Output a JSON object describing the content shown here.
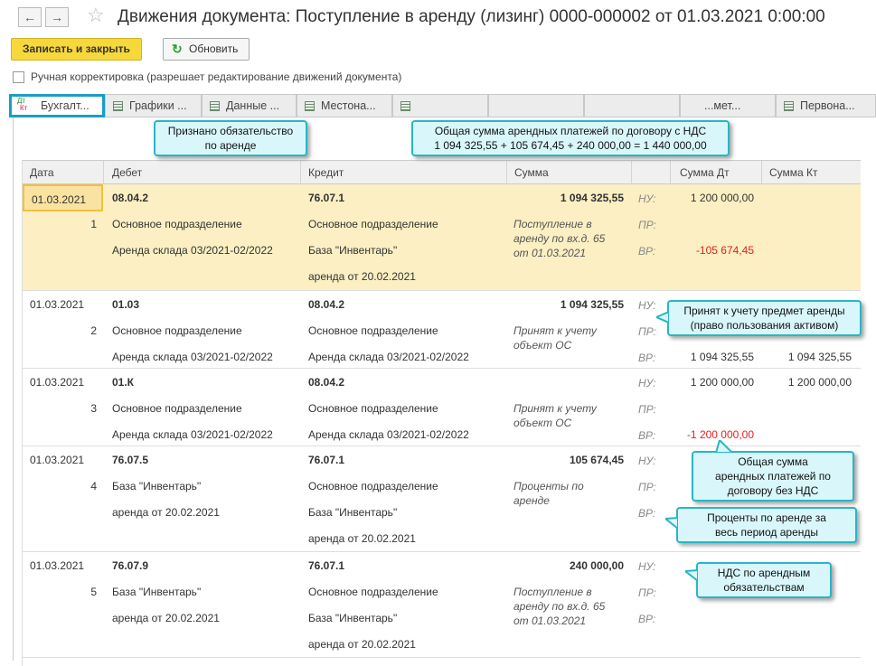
{
  "window": {
    "title": "Движения документа: Поступление в аренду (лизинг) 0000-000002 от 01.03.2021 0:00:00"
  },
  "toolbar": {
    "save_close": "Записать и закрыть",
    "refresh": "Обновить"
  },
  "manual": {
    "label": "Ручная корректировка (разрешает редактирование движений документа)",
    "checked": false
  },
  "tabs": [
    {
      "label": "Бухгалт...",
      "icon": "dt-kt-icon"
    },
    {
      "label": "Графики ..."
    },
    {
      "label": "Данные ..."
    },
    {
      "label": "Местона..."
    },
    {
      "label": ""
    },
    {
      "label": ""
    },
    {
      "label": ""
    },
    {
      "label": "...мет..."
    },
    {
      "label": "Первона..."
    }
  ],
  "columns": {
    "date": "Дата",
    "debit": "Дебет",
    "credit": "Кредит",
    "sum": "Сумма",
    "sum_dt": "Сумма Дт",
    "sum_kt": "Сумма Кт"
  },
  "labels": {
    "nu": "НУ:",
    "pr": "ПР:",
    "vr": "ВР:"
  },
  "rows": [
    {
      "date": "01.03.2021",
      "num": "1",
      "debit": "08.04.2",
      "debit_sub": [
        "Основное подразделение",
        "Аренда склада 03/2021-02/2022"
      ],
      "credit": "76.07.1",
      "credit_sub": [
        "Основное подразделение",
        "База \"Инвентарь\"",
        "аренда от 20.02.2021"
      ],
      "sum": "1 094 325,55",
      "content": "Поступление в аренду по вх.д. 65 от 01.03.2021",
      "nu_dt": "1 200 000,00",
      "nu_kt": "",
      "vr_dt": "-105 674,45",
      "vr_kt": ""
    },
    {
      "date": "01.03.2021",
      "num": "2",
      "debit": "01.03",
      "debit_sub": [
        "Основное подразделение",
        "Аренда склада 03/2021-02/2022"
      ],
      "credit": "08.04.2",
      "credit_sub": [
        "Основное подразделение",
        "Аренда склада 03/2021-02/2022"
      ],
      "sum": "1 094 325,55",
      "content": "Принят к учету объект ОС",
      "nu_dt": "",
      "nu_kt": "",
      "vr_dt": "1 094 325,55",
      "vr_kt": "1 094 325,55"
    },
    {
      "date": "01.03.2021",
      "num": "3",
      "debit": "01.К",
      "debit_sub": [
        "Основное подразделение",
        "Аренда склада 03/2021-02/2022"
      ],
      "credit": "08.04.2",
      "credit_sub": [
        "Основное подразделение",
        "Аренда склада 03/2021-02/2022"
      ],
      "sum": "",
      "content": "Принят к учету объект ОС",
      "nu_dt": "1 200 000,00",
      "nu_kt": "1 200 000,00",
      "vr_dt": "-1 200 000,00",
      "vr_kt": ""
    },
    {
      "date": "01.03.2021",
      "num": "4",
      "debit": "76.07.5",
      "debit_sub": [
        "База \"Инвентарь\"",
        "аренда от 20.02.2021"
      ],
      "credit": "76.07.1",
      "credit_sub": [
        "Основное подразделение",
        "База \"Инвентарь\"",
        "аренда от 20.02.2021"
      ],
      "sum": "105 674,45",
      "content": "Проценты по аренде",
      "nu_dt": "",
      "nu_kt": "",
      "vr_dt": "",
      "vr_kt": ""
    },
    {
      "date": "01.03.2021",
      "num": "5",
      "debit": "76.07.9",
      "debit_sub": [
        "База \"Инвентарь\"",
        "аренда от 20.02.2021"
      ],
      "credit": "76.07.1",
      "credit_sub": [
        "Основное подразделение",
        "База \"Инвентарь\"",
        "аренда от 20.02.2021"
      ],
      "sum": "240 000,00",
      "content": "Поступление в аренду по вх.д. 65 от 01.03.2021",
      "nu_dt": "",
      "nu_kt": "",
      "vr_dt": "",
      "vr_kt": ""
    }
  ],
  "callouts": {
    "total_vat": [
      "Общая сумма арендных платежей по договору с НДС",
      "1 094 325,55 + 105 674,45 + 240 000,00 = 1 440 000,00"
    ],
    "liability": [
      "Признано обязательство",
      "по аренде"
    ],
    "asset": [
      "Принят к учету предмет аренды",
      "(право пользования активом)"
    ],
    "total_novat": [
      "Общая сумма",
      "арендных платежей по",
      "договору без НДС"
    ],
    "interest": [
      "Проценты по аренде за",
      "весь период аренды"
    ],
    "vat": [
      "НДС по арендным",
      "обязательствам"
    ]
  },
  "colors": {
    "accent": "#1a9dc4",
    "primary_button": "#f6d83a",
    "selected_row": "#fbefc3",
    "negative": "#e02020",
    "callout_fill": "#d9f7fb",
    "callout_border": "#28b6c6"
  }
}
